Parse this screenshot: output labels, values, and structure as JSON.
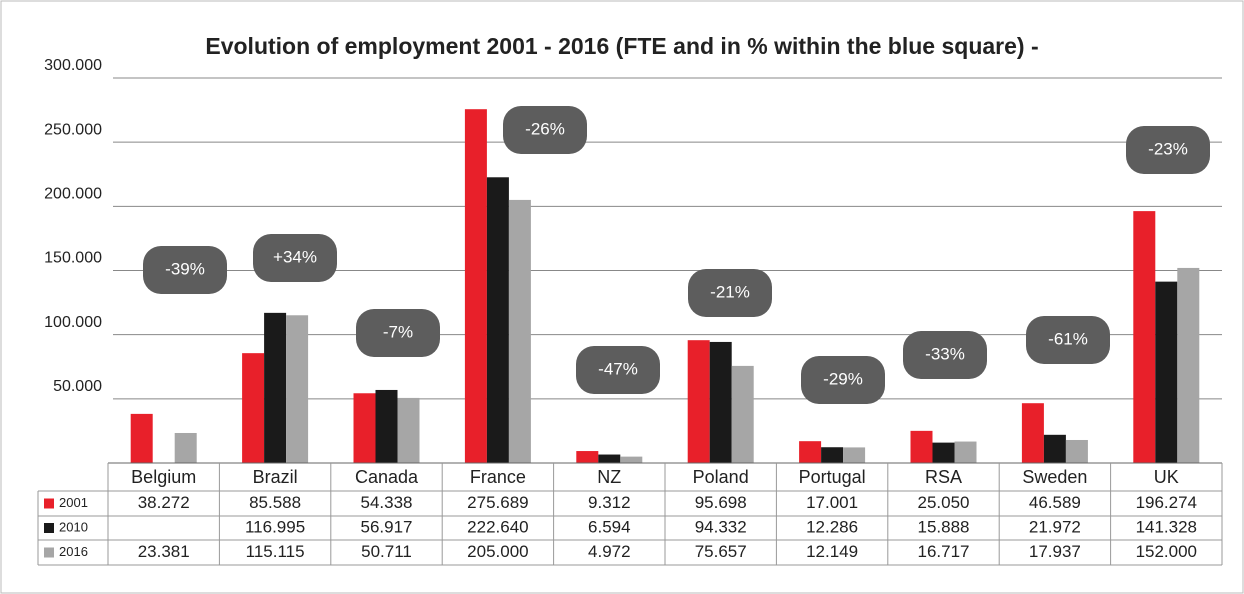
{
  "chart_data": {
    "type": "bar",
    "title": "Evolution of employment 2001 - 2016 (FTE and in % within the blue square) -",
    "categories": [
      "Belgium",
      "Brazil",
      "Canada",
      "France",
      "NZ",
      "Poland",
      "Portugal",
      "RSA",
      "Sweden",
      "UK"
    ],
    "series": [
      {
        "name": "2001",
        "color": "#e8202a",
        "values": [
          38272,
          85588,
          54338,
          275689,
          9312,
          95698,
          17001,
          25050,
          46589,
          196274
        ],
        "value_labels": [
          "38.272",
          "85.588",
          "54.338",
          "275.689",
          "9.312",
          "95.698",
          "17.001",
          "25.050",
          "46.589",
          "196.274"
        ]
      },
      {
        "name": "2010",
        "color": "#1a1a1a",
        "values": [
          null,
          116995,
          56917,
          222640,
          6594,
          94332,
          12286,
          15888,
          21972,
          141328
        ],
        "value_labels": [
          null,
          "116.995",
          "56.917",
          "222.640",
          "6.594",
          "94.332",
          "12.286",
          "15.888",
          "21.972",
          "141.328"
        ]
      },
      {
        "name": "2016",
        "color": "#a6a6a6",
        "values": [
          23381,
          115115,
          50711,
          205000,
          4972,
          75657,
          12149,
          16717,
          17937,
          152000
        ],
        "value_labels": [
          "23.381",
          "115.115",
          "50.711",
          "205.000",
          "4.972",
          "75.657",
          "12.149",
          "16.717",
          "17.937",
          "152.000"
        ]
      }
    ],
    "annotations": [
      "-39%",
      "+34%",
      "-7%",
      "-26%",
      "-47%",
      "-21%",
      "-29%",
      "-33%",
      "-61%",
      "-23%"
    ],
    "ylim": [
      0,
      300000
    ],
    "yticks": [
      {
        "value": 50000,
        "label": "50.000"
      },
      {
        "value": 100000,
        "label": "100.000"
      },
      {
        "value": 150000,
        "label": "150.000"
      },
      {
        "value": 200000,
        "label": "200.000"
      },
      {
        "value": 250000,
        "label": "250.000"
      },
      {
        "value": 300000,
        "label": "300.000"
      }
    ],
    "grid": true
  }
}
